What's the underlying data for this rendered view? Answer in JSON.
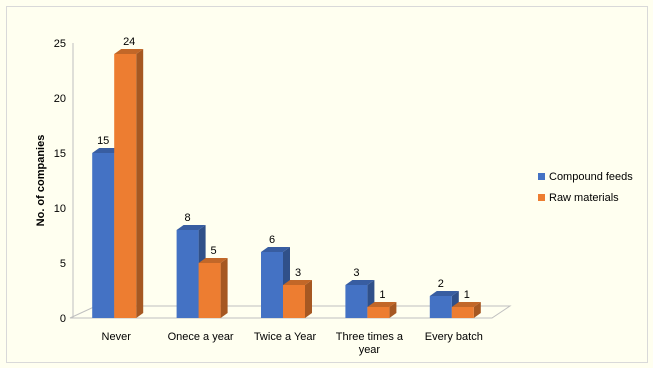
{
  "chart_data": {
    "type": "bar",
    "style": "3d-clustered-column",
    "categories": [
      [
        "Never"
      ],
      [
        "Onece a year"
      ],
      [
        "Twice a Year"
      ],
      [
        "Three times a",
        "year"
      ],
      [
        "Every batch"
      ]
    ],
    "series": [
      {
        "name": "Compound feeds",
        "values": [
          15,
          8,
          6,
          3,
          2
        ],
        "color": "#4472c4"
      },
      {
        "name": "Raw materials",
        "values": [
          24,
          5,
          3,
          1,
          1
        ],
        "color": "#ed7d31"
      }
    ],
    "title": "",
    "xlabel": "",
    "ylabel": "No. of companies",
    "ylim": [
      0,
      25
    ],
    "yticks": [
      0,
      5,
      10,
      15,
      20,
      25
    ],
    "grid": false,
    "legend_position": "right",
    "data_labels": true
  }
}
